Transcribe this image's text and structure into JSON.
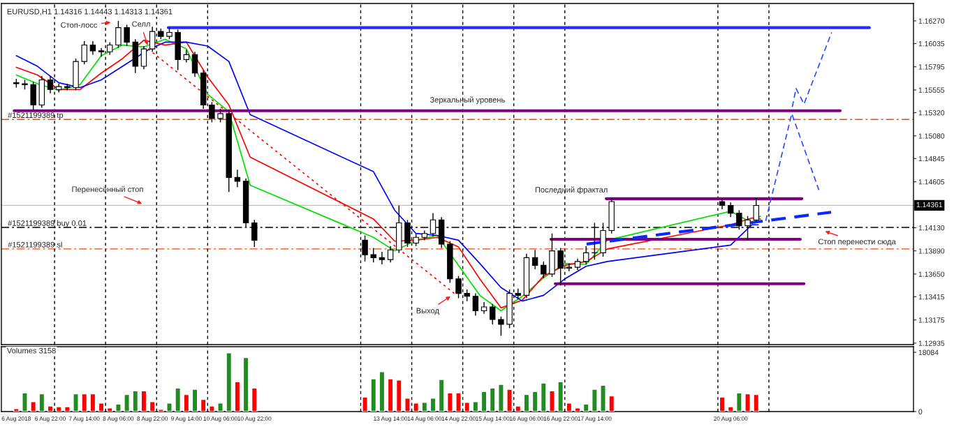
{
  "chart_data": [
    {
      "type": "candlestick",
      "title": "EURUSD,H1 1.14316 1.14443 1.14313 1.14361",
      "x": [
        "2018-08-06T06:00",
        "2018-08-06T10:00",
        "2018-08-06T14:00",
        "2018-08-06T18:00",
        "2018-08-06T22:00",
        "2018-08-07T02:00",
        "2018-08-07T06:00",
        "2018-08-07T10:00",
        "2018-08-07T14:00",
        "2018-08-07T18:00",
        "2018-08-07T22:00",
        "2018-08-08T02:00",
        "2018-08-08T06:00",
        "2018-08-08T10:00",
        "2018-08-08T14:00",
        "2018-08-08T18:00",
        "2018-08-08T22:00",
        "2018-08-09T02:00",
        "2018-08-09T06:00",
        "2018-08-09T10:00",
        "2018-08-09T14:00",
        "2018-08-09T18:00",
        "2018-08-09T22:00",
        "2018-08-10T02:00",
        "2018-08-10T06:00",
        "2018-08-10T10:00",
        "2018-08-10T14:00",
        "2018-08-10T18:00",
        "2018-08-10T22:00",
        "2018-08-13T02:00",
        "2018-08-13T06:00",
        "2018-08-13T10:00",
        "2018-08-13T14:00",
        "2018-08-13T18:00",
        "2018-08-13T22:00",
        "2018-08-14T02:00",
        "2018-08-14T06:00",
        "2018-08-14T10:00",
        "2018-08-14T14:00",
        "2018-08-14T18:00",
        "2018-08-14T22:00",
        "2018-08-15T02:00",
        "2018-08-15T06:00",
        "2018-08-15T10:00",
        "2018-08-15T14:00",
        "2018-08-15T18:00",
        "2018-08-15T22:00",
        "2018-08-16T02:00",
        "2018-08-16T06:00",
        "2018-08-16T10:00",
        "2018-08-16T14:00",
        "2018-08-16T18:00",
        "2018-08-16T22:00",
        "2018-08-17T02:00",
        "2018-08-17T06:00",
        "2018-08-17T10:00",
        "2018-08-17T14:00",
        "2018-08-17T18:00",
        "2018-08-17T22:00",
        "2018-08-20T02:00",
        "2018-08-20T06:00",
        "2018-08-20T10:00",
        "2018-08-20T14:00",
        "2018-08-20T18:00"
      ],
      "ohlc": [
        [
          1.1563,
          1.1567,
          1.1558,
          1.1562
        ],
        [
          1.1562,
          1.1566,
          1.1556,
          1.1561
        ],
        [
          1.1561,
          1.1564,
          1.1535,
          1.154
        ],
        [
          1.154,
          1.157,
          1.1537,
          1.1566
        ],
        [
          1.1566,
          1.157,
          1.1552,
          1.1556
        ],
        [
          1.1556,
          1.1562,
          1.1553,
          1.1559
        ],
        [
          1.1559,
          1.1562,
          1.1555,
          1.1558
        ],
        [
          1.1558,
          1.1588,
          1.1555,
          1.1585
        ],
        [
          1.1585,
          1.1606,
          1.1582,
          1.1602
        ],
        [
          1.1602,
          1.1606,
          1.1592,
          1.1596
        ],
        [
          1.1596,
          1.1599,
          1.159,
          1.1595
        ],
        [
          1.1595,
          1.1605,
          1.1592,
          1.1602
        ],
        [
          1.1602,
          1.1627,
          1.1599,
          1.162
        ],
        [
          1.162,
          1.1623,
          1.1601,
          1.1605
        ],
        [
          1.1605,
          1.1608,
          1.1573,
          1.158
        ],
        [
          1.158,
          1.1601,
          1.1577,
          1.1598
        ],
        [
          1.1598,
          1.1621,
          1.1595,
          1.1616
        ],
        [
          1.1616,
          1.1619,
          1.1608,
          1.1611
        ],
        [
          1.1611,
          1.162,
          1.1608,
          1.1615
        ],
        [
          1.1615,
          1.1618,
          1.1576,
          1.1587
        ],
        [
          1.1587,
          1.1597,
          1.1584,
          1.1592
        ],
        [
          1.1592,
          1.1595,
          1.1569,
          1.1573
        ],
        [
          1.1573,
          1.1576,
          1.1536,
          1.154
        ],
        [
          1.154,
          1.1543,
          1.1522,
          1.1526
        ],
        [
          1.1526,
          1.1536,
          1.1522,
          1.1531
        ],
        [
          1.1531,
          1.1534,
          1.145,
          1.1465
        ],
        [
          1.1465,
          1.1473,
          1.1455,
          1.1461
        ],
        [
          1.1461,
          1.1464,
          1.1414,
          1.1418
        ],
        [
          1.1418,
          1.1421,
          1.1393,
          1.14
        ],
        [
          1.14,
          1.1405,
          1.1378,
          1.1385
        ],
        [
          1.1385,
          1.1392,
          1.1377,
          1.1382
        ],
        [
          1.1382,
          1.1388,
          1.1375,
          1.138
        ],
        [
          1.138,
          1.1394,
          1.1377,
          1.139
        ],
        [
          1.139,
          1.1436,
          1.1387,
          1.1418
        ],
        [
          1.1418,
          1.1421,
          1.1393,
          1.1397
        ],
        [
          1.1397,
          1.1407,
          1.1394,
          1.1403
        ],
        [
          1.1403,
          1.141,
          1.14,
          1.1407
        ],
        [
          1.1407,
          1.1428,
          1.1404,
          1.1421
        ],
        [
          1.1421,
          1.1424,
          1.1392,
          1.1396
        ],
        [
          1.1396,
          1.1399,
          1.1356,
          1.136
        ],
        [
          1.136,
          1.1363,
          1.134,
          1.1345
        ],
        [
          1.1345,
          1.1349,
          1.1337,
          1.1342
        ],
        [
          1.1342,
          1.1345,
          1.1322,
          1.1327
        ],
        [
          1.1327,
          1.1336,
          1.1324,
          1.1331
        ],
        [
          1.1331,
          1.1334,
          1.1313,
          1.1318
        ],
        [
          1.1318,
          1.1321,
          1.1301,
          1.1313
        ],
        [
          1.1313,
          1.1349,
          1.1309,
          1.1345
        ],
        [
          1.1345,
          1.135,
          1.1339,
          1.1343
        ],
        [
          1.1343,
          1.1386,
          1.134,
          1.1382
        ],
        [
          1.1382,
          1.139,
          1.137,
          1.1374
        ],
        [
          1.1374,
          1.1378,
          1.1361,
          1.1365
        ],
        [
          1.1365,
          1.1407,
          1.1362,
          1.1389
        ],
        [
          1.1389,
          1.1392,
          1.1353,
          1.1371
        ],
        [
          1.1371,
          1.1376,
          1.1368,
          1.1372
        ],
        [
          1.1372,
          1.1381,
          1.1369,
          1.1378
        ],
        [
          1.1378,
          1.1394,
          1.1375,
          1.1387
        ],
        [
          1.1387,
          1.1418,
          1.138,
          1.1387
        ],
        [
          1.1387,
          1.1418,
          1.1383,
          1.141
        ],
        [
          1.141,
          1.1444,
          1.1407,
          1.144
        ],
        [
          1.144,
          1.1443,
          1.1432,
          1.1436
        ],
        [
          1.1436,
          1.1439,
          1.1424,
          1.1428
        ],
        [
          1.1428,
          1.1431,
          1.1411,
          1.1415
        ],
        [
          1.1415,
          1.1425,
          1.14,
          1.1421
        ],
        [
          1.1421,
          1.1444,
          1.1419,
          1.1436
        ]
      ],
      "series": [
        {
          "type": "line",
          "color": "#00e000",
          "line_style": "solid",
          "x": [
            "2018-08-06T06:00",
            "2018-08-06T16:00",
            "2018-08-07T02:00",
            "2018-08-07T12:00",
            "2018-08-07T22:00",
            "2018-08-08T08:00",
            "2018-08-08T18:00",
            "2018-08-09T04:00",
            "2018-08-09T14:00",
            "2018-08-10T00:00",
            "2018-08-10T10:00",
            "2018-08-10T20:00",
            "2018-08-13T06:00",
            "2018-08-13T16:00",
            "2018-08-14T02:00",
            "2018-08-14T12:00",
            "2018-08-14T22:00",
            "2018-08-15T08:00",
            "2018-08-15T18:00",
            "2018-08-16T04:00",
            "2018-08-16T14:00",
            "2018-08-17T00:00",
            "2018-08-17T10:00",
            "2018-08-17T20:00",
            "2018-08-20T06:00",
            "2018-08-20T16:00",
            "2018-08-20T20:00"
          ],
          "values": [
            1.1571,
            1.1562,
            1.1555,
            1.1561,
            1.1591,
            1.1602,
            1.16,
            1.1608,
            1.1598,
            1.1551,
            1.1533,
            1.1457,
            1.1403,
            1.1389,
            1.14,
            1.1405,
            1.1374,
            1.1343,
            1.1327,
            1.1342,
            1.1361,
            1.1376,
            1.1375,
            1.14,
            1.143,
            1.1418,
            1.1425
          ]
        },
        {
          "type": "line",
          "color": "#ff0000",
          "line_style": "solid",
          "x": [
            "2018-08-06T06:00",
            "2018-08-06T16:00",
            "2018-08-07T02:00",
            "2018-08-07T12:00",
            "2018-08-07T22:00",
            "2018-08-08T08:00",
            "2018-08-08T18:00",
            "2018-08-09T04:00",
            "2018-08-09T14:00",
            "2018-08-10T00:00",
            "2018-08-10T10:00",
            "2018-08-10T20:00",
            "2018-08-13T06:00",
            "2018-08-13T16:00",
            "2018-08-14T02:00",
            "2018-08-14T12:00",
            "2018-08-14T22:00",
            "2018-08-15T08:00",
            "2018-08-15T18:00",
            "2018-08-16T04:00",
            "2018-08-16T14:00",
            "2018-08-17T00:00",
            "2018-08-17T10:00",
            "2018-08-17T20:00",
            "2018-08-20T06:00",
            "2018-08-20T16:00",
            "2018-08-20T20:00"
          ],
          "values": [
            1.1579,
            1.1571,
            1.1556,
            1.1556,
            1.1573,
            1.1588,
            1.1607,
            1.1602,
            1.1605,
            1.1569,
            1.154,
            1.1486,
            1.1422,
            1.1399,
            1.14,
            1.1403,
            1.1393,
            1.136,
            1.133,
            1.1338,
            1.1363,
            1.1374,
            1.1378,
            1.1391,
            1.1416,
            1.1423,
            1.1422
          ]
        },
        {
          "type": "line",
          "color": "#0000ff",
          "line_style": "solid",
          "x": [
            "2018-08-06T06:00",
            "2018-08-06T16:00",
            "2018-08-07T02:00",
            "2018-08-07T12:00",
            "2018-08-07T22:00",
            "2018-08-08T08:00",
            "2018-08-08T20:00",
            "2018-08-09T04:00",
            "2018-08-09T14:00",
            "2018-08-10T00:00",
            "2018-08-10T10:00",
            "2018-08-10T20:00",
            "2018-08-13T06:00",
            "2018-08-13T16:00",
            "2018-08-14T02:00",
            "2018-08-14T12:00",
            "2018-08-14T22:00",
            "2018-08-15T08:00",
            "2018-08-15T18:00",
            "2018-08-16T04:00",
            "2018-08-16T14:00",
            "2018-08-17T00:00",
            "2018-08-17T10:00",
            "2018-08-17T20:00",
            "2018-08-20T06:00",
            "2018-08-20T16:00",
            "2018-08-20T19:00"
          ],
          "values": [
            1.1591,
            1.158,
            1.1563,
            1.1558,
            1.1566,
            1.158,
            1.1597,
            1.1605,
            1.1605,
            1.1601,
            1.1585,
            1.153,
            1.1471,
            1.1431,
            1.1407,
            1.1405,
            1.14,
            1.1376,
            1.1351,
            1.1337,
            1.1343,
            1.136,
            1.1373,
            1.1378,
            1.1395,
            1.1416,
            1.1416
          ]
        },
        {
          "type": "line",
          "color": "#ff0000",
          "line_style": "dotted",
          "x": [
            "2018-08-08T20:00",
            "2018-08-14T20:00"
          ],
          "values": [
            1.1598,
            1.1345
          ]
        },
        {
          "type": "line",
          "color": "#2a2aff",
          "line_style": "solid",
          "x": [
            "2018-08-09T05:30",
            "2018-08-22T23:15"
          ],
          "values": [
            1.162,
            1.162
          ]
        },
        {
          "type": "line",
          "color": "#800080",
          "line_style": "solid",
          "x": [
            "2018-08-06T05:00",
            "2018-08-22T09:30"
          ],
          "values": [
            1.1534,
            1.1534
          ]
        },
        {
          "type": "line",
          "color": "#800080",
          "line_style": "solid",
          "x": [
            "2018-08-17T19:30",
            "2018-08-21T15:30"
          ],
          "values": [
            1.1443,
            1.1443
          ]
        },
        {
          "type": "line",
          "color": "#800080",
          "line_style": "solid",
          "x": [
            "2018-08-16T17:30",
            "2018-08-21T14:45"
          ],
          "values": [
            1.1401,
            1.1401
          ]
        },
        {
          "type": "line",
          "color": "#800080",
          "line_style": "solid",
          "x": [
            "2018-08-16T19:30",
            "2018-08-21T16:30"
          ],
          "values": [
            1.1355,
            1.1355
          ]
        },
        {
          "type": "line",
          "color": "#0a28ff",
          "line_style": "dashed",
          "x": [
            "2018-08-17T10:15",
            "2018-08-22T05:15"
          ],
          "values": [
            1.1396,
            1.1429
          ]
        },
        {
          "type": "line",
          "color": "#2a4cff",
          "line_style": "dashed",
          "x": [
            "2018-08-20T22:30",
            "2018-08-21T10:45",
            "2018-08-21T23:30"
          ],
          "values": [
            1.142,
            1.1531,
            1.1452
          ]
        },
        {
          "type": "line",
          "color": "#2a4cff",
          "line_style": "dashed",
          "x": [
            "2018-08-21T11:00",
            "2018-08-21T12:45",
            "2018-08-21T16:30",
            "2018-08-22T05:30"
          ],
          "values": [
            1.1538,
            1.1557,
            1.1541,
            1.1615
          ]
        }
      ],
      "ref_lines": [
        {
          "axis": "y",
          "value": 1.1525,
          "label": "#1521199389 tp",
          "color": "#ff4500",
          "line_style": "dashed"
        },
        {
          "axis": "y",
          "value": 1.14133,
          "label": "#1521199389 buy 0.01",
          "color": "#000000",
          "line_style": "dashed"
        },
        {
          "axis": "y",
          "value": 1.1391,
          "label": "#1521199389 sl",
          "color": "#ff4500",
          "line_style": "dashed"
        },
        {
          "axis": "y",
          "value": 1.14361,
          "label": "1.14361",
          "color": "#c0c0c0",
          "line_style": "solid"
        },
        {
          "axis": "x",
          "value": "2018-08-07T00:00",
          "color": "#000000",
          "line_style": "dotted"
        },
        {
          "axis": "x",
          "value": "2018-08-08T00:00",
          "color": "#000000",
          "line_style": "dotted"
        },
        {
          "axis": "x",
          "value": "2018-08-09T00:00",
          "color": "#000000",
          "line_style": "dotted"
        },
        {
          "axis": "x",
          "value": "2018-08-10T00:00",
          "color": "#000000",
          "line_style": "dotted"
        },
        {
          "axis": "x",
          "value": "2018-08-13T00:00",
          "color": "#000000",
          "line_style": "dotted"
        },
        {
          "axis": "x",
          "value": "2018-08-14T00:00",
          "color": "#000000",
          "line_style": "dotted"
        },
        {
          "axis": "x",
          "value": "2018-08-15T00:00",
          "color": "#000000",
          "line_style": "dotted"
        },
        {
          "axis": "x",
          "value": "2018-08-16T00:00",
          "color": "#000000",
          "line_style": "dotted"
        },
        {
          "axis": "x",
          "value": "2018-08-17T00:00",
          "color": "#000000",
          "line_style": "dotted"
        },
        {
          "axis": "x",
          "value": "2018-08-20T00:00",
          "color": "#000000",
          "line_style": "dotted"
        },
        {
          "axis": "x",
          "value": "2018-08-21T00:00",
          "color": "#000000",
          "line_style": "dotted"
        }
      ],
      "annotations": [
        "Стоп-лосс",
        {
          "text": "Селл",
          "x": "2018-08-08T20:00",
          "y": 1.16
        },
        "Зеркальный уровень",
        {
          "text": "Перенесённый стоп",
          "x": "2018-08-08T18:00",
          "y": 1.1437
        },
        {
          "text": "Последний фрактал",
          "x": "2018-08-17T19:30",
          "y": 1.1443
        },
        {
          "text": "Выход",
          "x": "2018-08-14T19:00",
          "y": 1.1343
        },
        "Стоп перенести сюда"
      ],
      "xlim": [
        "2018-08-05T23:00",
        "2018-08-23T20:00"
      ],
      "ylim": [
        1.1292,
        1.1645
      ],
      "yticks": [
        {
          "value": 1.1627,
          "label": "1.16270"
        },
        {
          "value": 1.16035,
          "label": "1.16035"
        },
        {
          "value": 1.15795,
          "label": "1.15795"
        },
        {
          "value": 1.15555,
          "label": "1.15555"
        },
        {
          "value": 1.1532,
          "label": "1.15320"
        },
        {
          "value": 1.1508,
          "label": "1.15080"
        },
        {
          "value": 1.14845,
          "label": "1.14845"
        },
        {
          "value": 1.14605,
          "label": "1.14605"
        },
        {
          "value": 1.1413,
          "label": "1.14130"
        },
        {
          "value": 1.1389,
          "label": "1.13890"
        },
        {
          "value": 1.1365,
          "label": "1.13650"
        },
        {
          "value": 1.13415,
          "label": "1.13415"
        },
        {
          "value": 1.13175,
          "label": "1.13175"
        },
        {
          "value": 1.12935,
          "label": "1.12935"
        }
      ],
      "tick_labels": "y"
    },
    {
      "type": "bar",
      "title": "Volumes 3158",
      "x": [
        "2018-08-06T06:00",
        "2018-08-06T10:00",
        "2018-08-06T14:00",
        "2018-08-06T18:00",
        "2018-08-06T22:00",
        "2018-08-07T02:00",
        "2018-08-07T06:00",
        "2018-08-07T10:00",
        "2018-08-07T14:00",
        "2018-08-07T18:00",
        "2018-08-07T22:00",
        "2018-08-08T02:00",
        "2018-08-08T06:00",
        "2018-08-08T10:00",
        "2018-08-08T14:00",
        "2018-08-08T18:00",
        "2018-08-08T22:00",
        "2018-08-09T02:00",
        "2018-08-09T06:00",
        "2018-08-09T10:00",
        "2018-08-09T14:00",
        "2018-08-09T18:00",
        "2018-08-09T22:00",
        "2018-08-10T02:00",
        "2018-08-10T06:00",
        "2018-08-10T10:00",
        "2018-08-10T14:00",
        "2018-08-10T18:00",
        "2018-08-10T22:00",
        "2018-08-13T02:00",
        "2018-08-13T06:00",
        "2018-08-13T10:00",
        "2018-08-13T14:00",
        "2018-08-13T18:00",
        "2018-08-13T22:00",
        "2018-08-14T02:00",
        "2018-08-14T06:00",
        "2018-08-14T10:00",
        "2018-08-14T14:00",
        "2018-08-14T18:00",
        "2018-08-14T22:00",
        "2018-08-15T02:00",
        "2018-08-15T06:00",
        "2018-08-15T10:00",
        "2018-08-15T14:00",
        "2018-08-15T18:00",
        "2018-08-15T22:00",
        "2018-08-16T02:00",
        "2018-08-16T06:00",
        "2018-08-16T10:00",
        "2018-08-16T14:00",
        "2018-08-16T18:00",
        "2018-08-16T22:00",
        "2018-08-17T02:00",
        "2018-08-17T06:00",
        "2018-08-17T10:00",
        "2018-08-17T14:00",
        "2018-08-17T18:00",
        "2018-08-17T22:00",
        "2018-08-20T02:00",
        "2018-08-20T06:00",
        "2018-08-20T10:00",
        "2018-08-20T14:00",
        "2018-08-20T18:00"
      ],
      "values": [
        900,
        5700,
        3000,
        5400,
        1700,
        1500,
        1500,
        5400,
        5400,
        5400,
        2600,
        1100,
        2300,
        5200,
        6300,
        6300,
        3000,
        700,
        2600,
        7200,
        5200,
        6800,
        3700,
        1700,
        2600,
        17900,
        9100,
        16500,
        7200,
        4400,
        10000,
        12200,
        10000,
        9600,
        4100,
        2600,
        2800,
        4100,
        9800,
        5700,
        5700,
        2800,
        3000,
        6100,
        7200,
        8300,
        6800,
        1700,
        5200,
        6100,
        8700,
        6300,
        9100,
        2600,
        1100,
        2300,
        6800,
        8000,
        4800,
        4400,
        1500,
        5700,
        5400,
        5200
      ],
      "colors": [
        "#ff0000",
        "#228b22",
        "#ff0000",
        "#228b22",
        "#ff0000",
        "#ff0000",
        "#ff0000",
        "#228b22",
        "#ff0000",
        "#ff0000",
        "#ff0000",
        "#ff0000",
        "#228b22",
        "#228b22",
        "#228b22",
        "#ff0000",
        "#ff0000",
        "#ff0000",
        "#228b22",
        "#228b22",
        "#ff0000",
        "#228b22",
        "#ff0000",
        "#ff0000",
        "#228b22",
        "#228b22",
        "#ff0000",
        "#228b22",
        "#ff0000",
        "#ff0000",
        "#228b22",
        "#228b22",
        "#ff0000",
        "#ff0000",
        "#ff0000",
        "#ff0000",
        "#228b22",
        "#228b22",
        "#228b22",
        "#ff0000",
        "#ff0000",
        "#ff0000",
        "#228b22",
        "#228b22",
        "#228b22",
        "#228b22",
        "#ff0000",
        "#ff0000",
        "#228b22",
        "#228b22",
        "#228b22",
        "#ff0000",
        "#228b22",
        "#ff0000",
        "#ff0000",
        "#228b22",
        "#228b22",
        "#228b22",
        "#ff0000",
        "#ff0000",
        "#ff0000",
        "#228b22",
        "#ff0000",
        "#ff0000"
      ],
      "ref_lines": [
        {
          "axis": "x",
          "value": "2018-08-07T00:00",
          "color": "#000000",
          "line_style": "dotted"
        },
        {
          "axis": "x",
          "value": "2018-08-08T00:00",
          "color": "#000000",
          "line_style": "dotted"
        },
        {
          "axis": "x",
          "value": "2018-08-09T00:00",
          "color": "#000000",
          "line_style": "dotted"
        },
        {
          "axis": "x",
          "value": "2018-08-10T00:00",
          "color": "#000000",
          "line_style": "dotted"
        },
        {
          "axis": "x",
          "value": "2018-08-13T00:00",
          "color": "#000000",
          "line_style": "dotted"
        },
        {
          "axis": "x",
          "value": "2018-08-14T00:00",
          "color": "#000000",
          "line_style": "dotted"
        },
        {
          "axis": "x",
          "value": "2018-08-15T00:00",
          "color": "#000000",
          "line_style": "dotted"
        },
        {
          "axis": "x",
          "value": "2018-08-16T00:00",
          "color": "#000000",
          "line_style": "dotted"
        },
        {
          "axis": "x",
          "value": "2018-08-17T00:00",
          "color": "#000000",
          "line_style": "dotted"
        },
        {
          "axis": "x",
          "value": "2018-08-20T00:00",
          "color": "#000000",
          "line_style": "dotted"
        },
        {
          "axis": "x",
          "value": "2018-08-21T00:00",
          "color": "#000000",
          "line_style": "dotted"
        }
      ],
      "xlim": [
        "2018-08-05T23:00",
        "2018-08-23T20:00"
      ],
      "ylim": [
        0,
        19800
      ],
      "yticks": [
        0,
        18084
      ],
      "xticks": [
        {
          "value": "2018-08-06T06:00",
          "label": "6 Aug 2018"
        },
        {
          "value": "2018-08-06T22:00",
          "label": "6 Aug 22:00"
        },
        {
          "value": "2018-08-07T14:00",
          "label": "7 Aug 14:00"
        },
        {
          "value": "2018-08-08T06:00",
          "label": "8 Aug 06:00"
        },
        {
          "value": "2018-08-08T22:00",
          "label": "8 Aug 22:00"
        },
        {
          "value": "2018-08-09T14:00",
          "label": "9 Aug 14:00"
        },
        {
          "value": "2018-08-10T06:00",
          "label": "10 Aug 06:00"
        },
        {
          "value": "2018-08-10T22:00",
          "label": "10 Aug 22:00"
        },
        {
          "value": "2018-08-13T14:00",
          "label": "13 Aug 14:00"
        },
        {
          "value": "2018-08-14T06:00",
          "label": "14 Aug 06:00"
        },
        {
          "value": "2018-08-14T22:00",
          "label": "14 Aug 22:00"
        },
        {
          "value": "2018-08-15T14:00",
          "label": "15 Aug 14:00"
        },
        {
          "value": "2018-08-16T06:00",
          "label": "16 Aug 06:00"
        },
        {
          "value": "2018-08-16T22:00",
          "label": "16 Aug 22:00"
        },
        {
          "value": "2018-08-17T14:00",
          "label": "17 Aug 14:00"
        },
        {
          "value": "2018-08-20T06:00",
          "label": "20 Aug 06:00"
        }
      ]
    }
  ]
}
